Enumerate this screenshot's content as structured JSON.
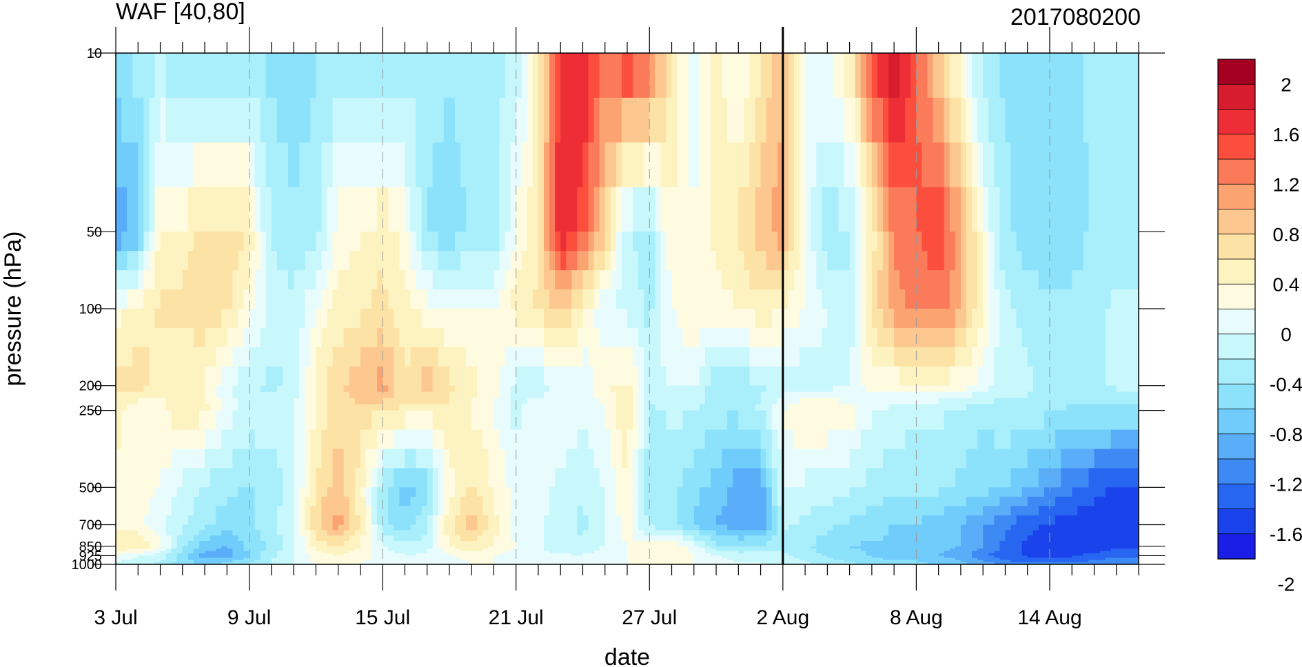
{
  "chart_data": {
    "type": "heatmap",
    "title_left": "WAF [40,80]",
    "title_right": "2017080200",
    "xlabel": "date",
    "ylabel": "pressure (hPa)",
    "x_ticks": [
      "3 Jul",
      "9 Jul",
      "15 Jul",
      "21 Jul",
      "27 Jul",
      "2 Aug",
      "8 Aug",
      "14 Aug"
    ],
    "x_range_days": [
      "3 Jul",
      "18 Aug"
    ],
    "y_scale": "log",
    "y_ticks": [
      10,
      50,
      100,
      200,
      250,
      500,
      700,
      850,
      925,
      1000
    ],
    "y_range": [
      1000,
      10
    ],
    "dates": [
      "3 Jul",
      "4 Jul",
      "5 Jul",
      "6 Jul",
      "7 Jul",
      "8 Jul",
      "9 Jul",
      "10 Jul",
      "11 Jul",
      "12 Jul",
      "13 Jul",
      "14 Jul",
      "15 Jul",
      "16 Jul",
      "17 Jul",
      "18 Jul",
      "19 Jul",
      "20 Jul",
      "21 Jul",
      "22 Jul",
      "23 Jul",
      "24 Jul",
      "25 Jul",
      "26 Jul",
      "27 Jul",
      "28 Jul",
      "29 Jul",
      "30 Jul",
      "31 Jul",
      "1 Aug",
      "2 Aug",
      "3 Aug",
      "4 Aug",
      "5 Aug",
      "6 Aug",
      "7 Aug",
      "8 Aug",
      "9 Aug",
      "10 Aug",
      "11 Aug",
      "12 Aug",
      "13 Aug",
      "14 Aug",
      "15 Aug",
      "16 Aug",
      "17 Aug"
    ],
    "levels": [
      10,
      50,
      100,
      200,
      250,
      500,
      700,
      850,
      925,
      1000
    ],
    "values": [
      [
        -0.6,
        -0.6,
        -0.5,
        -0.7,
        -0.8,
        -0.7,
        -0.7,
        -0.7,
        -0.8,
        -0.7,
        -0.6,
        -0.7,
        -0.7,
        -0.6,
        -0.5,
        -0.6,
        -0.6,
        -0.5,
        -0.4,
        0.4,
        1.6,
        1.8,
        1.2,
        1.6,
        1.4,
        0.4,
        -0.2,
        0.3,
        -0.1,
        0.4,
        0.8,
        -0.1,
        0.0,
        0.4,
        1.5,
        2.0,
        1.4,
        0.7,
        0.1,
        -0.6,
        -0.7,
        -0.8,
        -0.8,
        -0.7,
        -0.6,
        -0.6
      ],
      [
        -1.4,
        -1.0,
        0.3,
        0.3,
        0.6,
        0.6,
        0.4,
        -0.5,
        -0.6,
        -0.5,
        0.1,
        0.2,
        0.4,
        0.1,
        -0.7,
        -0.8,
        -0.6,
        -0.6,
        0.0,
        0.4,
        1.8,
        1.4,
        0.7,
        -0.4,
        -0.6,
        0.2,
        0.0,
        0.3,
        0.5,
        0.8,
        1.0,
        -0.1,
        -0.6,
        -0.5,
        0.3,
        1.2,
        1.3,
        1.5,
        1.0,
        0.1,
        -0.6,
        -0.8,
        -0.9,
        -0.8,
        -0.6,
        -0.6
      ],
      [
        0.1,
        0.3,
        0.5,
        0.5,
        0.6,
        0.5,
        0.1,
        -0.3,
        -0.4,
        0.0,
        0.3,
        0.4,
        0.5,
        0.3,
        0.1,
        0.0,
        0.0,
        0.0,
        0.3,
        0.5,
        0.7,
        0.3,
        -0.2,
        -0.3,
        -0.5,
        0.0,
        0.2,
        0.1,
        0.2,
        0.4,
        0.2,
        0.0,
        -0.2,
        -0.4,
        0.5,
        1.0,
        1.2,
        1.2,
        0.9,
        0.2,
        -0.4,
        -0.5,
        -0.6,
        -0.6,
        -0.5,
        -0.4
      ],
      [
        0.5,
        0.6,
        0.3,
        0.3,
        0.2,
        -0.2,
        -0.4,
        -0.5,
        -0.4,
        0.3,
        0.6,
        0.8,
        1.0,
        0.5,
        0.8,
        0.5,
        0.3,
        0.1,
        -0.3,
        -0.4,
        -0.1,
        -0.2,
        0.2,
        0.3,
        -0.3,
        -0.2,
        -0.2,
        -0.6,
        -0.6,
        -0.5,
        -0.3,
        -0.4,
        -0.3,
        -0.2,
        0.1,
        0.1,
        0.1,
        0.1,
        0.1,
        -0.1,
        -0.4,
        -0.4,
        -0.5,
        -0.5,
        -0.5,
        -0.4
      ],
      [
        0.3,
        0.0,
        0.1,
        0.4,
        0.3,
        -0.1,
        -0.3,
        -0.3,
        -0.2,
        0.2,
        0.6,
        0.6,
        0.5,
        0.4,
        0.3,
        0.4,
        0.2,
        0.0,
        -0.3,
        0.0,
        0.0,
        -0.2,
        0.0,
        0.4,
        -0.5,
        -0.4,
        -0.4,
        -0.6,
        -0.6,
        -0.4,
        0.0,
        0.3,
        0.2,
        0.1,
        -0.2,
        -0.3,
        -0.4,
        -0.4,
        -0.5,
        -0.6,
        -0.5,
        -0.5,
        -0.6,
        -0.7,
        -0.7,
        -0.7
      ],
      [
        0.2,
        0.1,
        0.0,
        -0.3,
        -0.5,
        -0.6,
        -0.7,
        -0.6,
        -0.3,
        0.5,
        0.8,
        0.3,
        -0.6,
        -1.0,
        -0.8,
        0.1,
        0.5,
        0.2,
        -0.1,
        -0.1,
        -0.3,
        -0.4,
        -0.2,
        0.2,
        -0.6,
        -0.6,
        -0.8,
        -1.0,
        -1.2,
        -1.3,
        -0.2,
        -0.3,
        -0.3,
        -0.4,
        -0.5,
        -0.6,
        -0.6,
        -0.6,
        -0.7,
        -0.8,
        -0.9,
        -1.1,
        -1.3,
        -1.5,
        -1.7,
        -1.8
      ],
      [
        0.2,
        0.1,
        -0.2,
        -0.4,
        -0.6,
        -0.8,
        -0.7,
        -0.5,
        -0.2,
        0.6,
        1.0,
        0.4,
        -0.6,
        -0.8,
        -0.5,
        0.4,
        0.8,
        0.3,
        -0.1,
        -0.2,
        -0.3,
        -0.5,
        -0.2,
        0.1,
        -0.5,
        -0.6,
        -0.9,
        -1.1,
        -1.2,
        -1.3,
        -0.4,
        -0.5,
        -0.6,
        -0.7,
        -0.8,
        -0.9,
        -0.9,
        -1.0,
        -1.1,
        -1.3,
        -1.5,
        -1.7,
        -1.8,
        -1.9,
        -1.9,
        -1.9
      ],
      [
        0.4,
        0.4,
        0.1,
        -0.6,
        -1.0,
        -1.1,
        -0.8,
        -0.6,
        -0.3,
        0.3,
        0.5,
        0.2,
        -0.2,
        -0.4,
        -0.3,
        0.2,
        0.4,
        0.2,
        0.0,
        -0.2,
        -0.3,
        -0.4,
        -0.2,
        0.0,
        0.1,
        0.2,
        -0.1,
        -0.6,
        -0.7,
        -0.6,
        -0.5,
        -0.6,
        -0.8,
        -0.9,
        -0.9,
        -0.9,
        -1.0,
        -1.0,
        -1.1,
        -1.3,
        -1.6,
        -1.8,
        -1.9,
        -1.9,
        -1.9,
        -1.8
      ],
      [
        0.0,
        -0.2,
        -0.3,
        -0.8,
        -1.2,
        -1.2,
        -0.9,
        -0.5,
        -0.2,
        0.1,
        0.2,
        0.1,
        -0.1,
        -0.2,
        -0.2,
        0.0,
        0.1,
        0.0,
        -0.1,
        -0.2,
        -0.2,
        -0.2,
        -0.1,
        0.0,
        0.1,
        0.2,
        0.0,
        -0.2,
        -0.3,
        -0.3,
        -0.4,
        -0.5,
        -0.7,
        -0.8,
        -0.9,
        -1.0,
        -1.0,
        -1.1,
        -1.2,
        -1.5,
        -1.7,
        -1.8,
        -1.8,
        -1.8,
        -1.7,
        -1.6
      ],
      [
        -0.3,
        -0.4,
        -0.5,
        -0.8,
        -0.9,
        -0.8,
        -0.6,
        -0.4,
        -0.2,
        0.0,
        0.0,
        0.0,
        -0.1,
        -0.2,
        -0.2,
        -0.1,
        0.0,
        0.0,
        -0.1,
        -0.1,
        -0.2,
        -0.1,
        -0.1,
        0.0,
        0.0,
        0.0,
        0.0,
        -0.1,
        -0.2,
        -0.2,
        -0.3,
        -0.4,
        -0.5,
        -0.6,
        -0.7,
        -0.8,
        -0.8,
        -0.9,
        -1.0,
        -1.2,
        -1.4,
        -1.5,
        -1.5,
        -1.5,
        -1.4,
        -1.3
      ]
    ],
    "colorbar_labels": [
      "2",
      "1.6",
      "1.2",
      "0.8",
      "0.4",
      "0",
      "-0.4",
      "-0.8",
      "-1.2",
      "-1.6",
      "-2"
    ],
    "colorbar_colors": [
      "#a50021",
      "#d71c2d",
      "#ee2e36",
      "#fb4e3d",
      "#fb7a5a",
      "#fca372",
      "#fcc890",
      "#fde2a5",
      "#fdf3c1",
      "#fefbe0",
      "#e8fcfd",
      "#c8f7fc",
      "#a8eefb",
      "#8de2fb",
      "#70ccfb",
      "#5aadf8",
      "#3d8af4",
      "#2766f0",
      "#1a43ec",
      "#1a1ee6"
    ],
    "vertical_marker": "2 Aug"
  }
}
